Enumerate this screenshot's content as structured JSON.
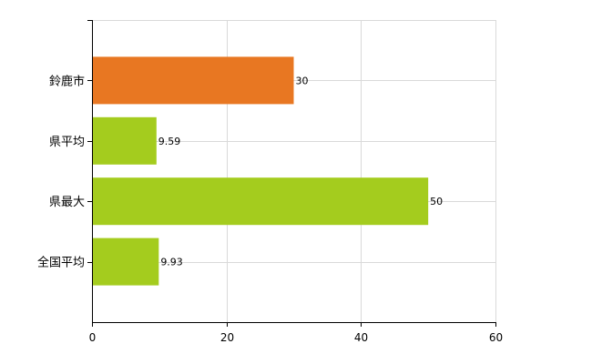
{
  "chart_data": {
    "type": "bar",
    "orientation": "horizontal",
    "title": "",
    "xlabel": "",
    "ylabel": "",
    "categories": [
      "鈴鹿市",
      "県平均",
      "県最大",
      "全国平均"
    ],
    "values": [
      30,
      9.59,
      50,
      9.93
    ],
    "value_labels": [
      "30",
      "9.59",
      "50",
      "9.93"
    ],
    "bar_colors": [
      "#e87722",
      "#a4cc1e",
      "#a4cc1e",
      "#a4cc1e"
    ],
    "xlim": [
      0,
      60
    ],
    "x_ticks": [
      0,
      20,
      40,
      60
    ],
    "x_tick_labels": [
      "0",
      "20",
      "40",
      "60"
    ],
    "grid": true,
    "legend": "none"
  }
}
